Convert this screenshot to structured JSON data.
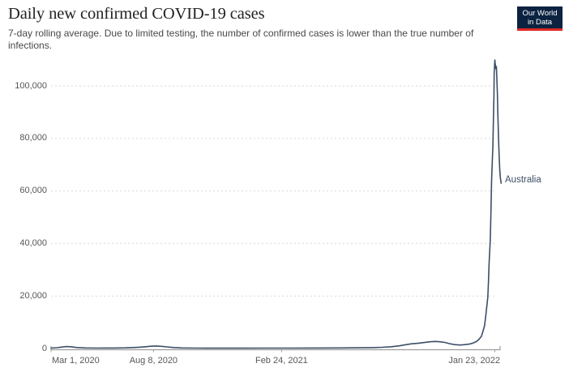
{
  "header": {
    "title": "Daily new confirmed COVID-19 cases",
    "subtitle_line1": "7-day rolling average. Due to limited testing, the number of confirmed cases is lower than the true number of",
    "subtitle_line2": "infections."
  },
  "logo": {
    "line1": "Our World",
    "line2": "in Data",
    "bg_color": "#0b2341",
    "accent_color": "#dc2a24",
    "text_color": "#ffffff"
  },
  "chart_data": {
    "type": "line",
    "title": "Daily new confirmed COVID-19 cases",
    "subtitle": "7-day rolling average. Due to limited testing, the number of confirmed cases is lower than the true number of infections.",
    "grid": "horizontal-dotted",
    "legend_position": "end-of-line",
    "x_epoch": "2020-03-01",
    "x_axis_end_day": 701,
    "ylim": [
      0,
      110000
    ],
    "y_ticks": [
      {
        "label": "0",
        "value": 0
      },
      {
        "label": "20,000",
        "value": 20000
      },
      {
        "label": "40,000",
        "value": 40000
      },
      {
        "label": "60,000",
        "value": 60000
      },
      {
        "label": "80,000",
        "value": 80000
      },
      {
        "label": "100,000",
        "value": 100000
      }
    ],
    "x_ticks": [
      {
        "label": "Mar 1, 2020",
        "day": 0,
        "align": "left"
      },
      {
        "label": "Aug 8, 2020",
        "day": 160,
        "align": "center"
      },
      {
        "label": "Feb 24, 2021",
        "day": 360,
        "align": "center"
      },
      {
        "label": "Jan 23, 2022",
        "day": 693,
        "align": "right"
      }
    ],
    "series": [
      {
        "name": "Australia",
        "color": "#3c4e66",
        "points": [
          {
            "d": 0,
            "v": 154
          },
          {
            "d": 9,
            "v": 309
          },
          {
            "d": 16,
            "v": 525
          },
          {
            "d": 24,
            "v": 741
          },
          {
            "d": 32,
            "v": 648
          },
          {
            "d": 40,
            "v": 370
          },
          {
            "d": 53,
            "v": 216
          },
          {
            "d": 72,
            "v": 154
          },
          {
            "d": 97,
            "v": 185
          },
          {
            "d": 116,
            "v": 247
          },
          {
            "d": 129,
            "v": 370
          },
          {
            "d": 138,
            "v": 494
          },
          {
            "d": 148,
            "v": 679
          },
          {
            "d": 156,
            "v": 864
          },
          {
            "d": 163,
            "v": 957
          },
          {
            "d": 172,
            "v": 833
          },
          {
            "d": 181,
            "v": 617
          },
          {
            "d": 191,
            "v": 370
          },
          {
            "d": 204,
            "v": 216
          },
          {
            "d": 224,
            "v": 154
          },
          {
            "d": 262,
            "v": 123
          },
          {
            "d": 300,
            "v": 123
          },
          {
            "d": 338,
            "v": 154
          },
          {
            "d": 376,
            "v": 154
          },
          {
            "d": 414,
            "v": 185
          },
          {
            "d": 452,
            "v": 216
          },
          {
            "d": 483,
            "v": 278
          },
          {
            "d": 502,
            "v": 340
          },
          {
            "d": 517,
            "v": 463
          },
          {
            "d": 530,
            "v": 648
          },
          {
            "d": 543,
            "v": 988
          },
          {
            "d": 553,
            "v": 1420
          },
          {
            "d": 563,
            "v": 1790
          },
          {
            "d": 573,
            "v": 1975
          },
          {
            "d": 583,
            "v": 2284
          },
          {
            "d": 592,
            "v": 2562
          },
          {
            "d": 600,
            "v": 2685
          },
          {
            "d": 607,
            "v": 2562
          },
          {
            "d": 615,
            "v": 2315
          },
          {
            "d": 622,
            "v": 1852
          },
          {
            "d": 630,
            "v": 1481
          },
          {
            "d": 638,
            "v": 1327
          },
          {
            "d": 645,
            "v": 1450
          },
          {
            "d": 653,
            "v": 1667
          },
          {
            "d": 659,
            "v": 2068
          },
          {
            "d": 664,
            "v": 2623
          },
          {
            "d": 668,
            "v": 3395
          },
          {
            "d": 672,
            "v": 4630
          },
          {
            "d": 674,
            "v": 6173
          },
          {
            "d": 677,
            "v": 8642
          },
          {
            "d": 679,
            "v": 12654
          },
          {
            "d": 682,
            "v": 19444
          },
          {
            "d": 683,
            "v": 25000
          },
          {
            "d": 684,
            "v": 32407
          },
          {
            "d": 686,
            "v": 41358
          },
          {
            "d": 687,
            "v": 51852
          },
          {
            "d": 688,
            "v": 64198
          },
          {
            "d": 690,
            "v": 77160
          },
          {
            "d": 690.7,
            "v": 86420
          },
          {
            "d": 691.6,
            "v": 96296
          },
          {
            "d": 692,
            "v": 104938
          },
          {
            "d": 693,
            "v": 109877
          },
          {
            "d": 693.6,
            "v": 108642
          },
          {
            "d": 694.7,
            "v": 106481
          },
          {
            "d": 695.4,
            "v": 107407
          },
          {
            "d": 696,
            "v": 104321
          },
          {
            "d": 697,
            "v": 97531
          },
          {
            "d": 697.7,
            "v": 89506
          },
          {
            "d": 698.7,
            "v": 80864
          },
          {
            "d": 699.7,
            "v": 73457
          },
          {
            "d": 700.7,
            "v": 67901
          },
          {
            "d": 701.8,
            "v": 64815
          },
          {
            "d": 702.9,
            "v": 62963
          }
        ],
        "end_label": "Australia"
      }
    ],
    "colors": {
      "gridline": "#d9d9d9",
      "axis": "#9d9d9d",
      "tick_text": "#575757"
    }
  }
}
